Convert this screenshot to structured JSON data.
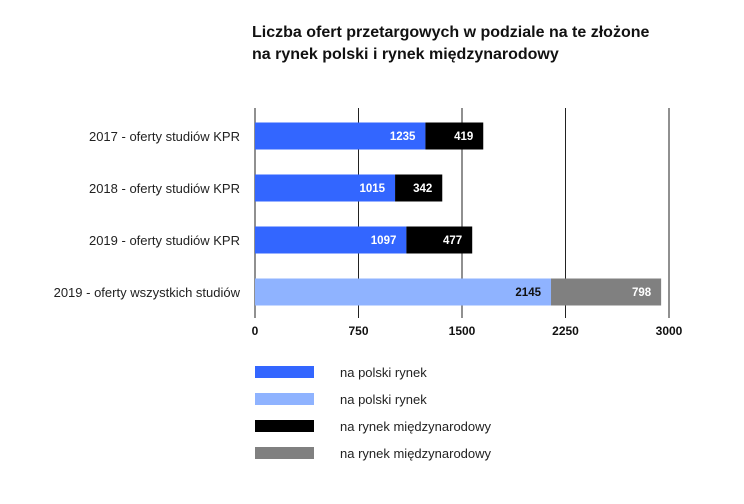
{
  "chart_data": {
    "type": "bar",
    "orientation": "horizontal",
    "stacked": true,
    "title_lines": [
      "Liczba ofert przetargowych w podziale na te złożone",
      "na rynek polski i rynek międzynarodowy"
    ],
    "categories": [
      "2017 - oferty studiów KPR",
      "2018 - oferty studiów KPR",
      "2019 - oferty studiów KPR",
      "2019 - oferty wszystkich studiów"
    ],
    "series": [
      {
        "name": "na polski rynek",
        "color": "#3366ff",
        "values": [
          1235,
          1015,
          1097,
          null
        ]
      },
      {
        "name": "na polski rynek",
        "color": "#8fb3ff",
        "values": [
          null,
          null,
          null,
          2145
        ]
      },
      {
        "name": "na rynek międzynarodowy",
        "color": "#000000",
        "values": [
          419,
          342,
          477,
          null
        ]
      },
      {
        "name": "na rynek międzynarodowy",
        "color": "#808080",
        "values": [
          null,
          null,
          null,
          798
        ]
      }
    ],
    "xlim": [
      0,
      3000
    ],
    "xticks": [
      0,
      750,
      1500,
      2250,
      3000
    ],
    "xtick_labels": [
      "0",
      "750",
      "1500",
      "2250",
      "3000"
    ],
    "grid": "vertical",
    "legend_position": "bottom-left"
  }
}
